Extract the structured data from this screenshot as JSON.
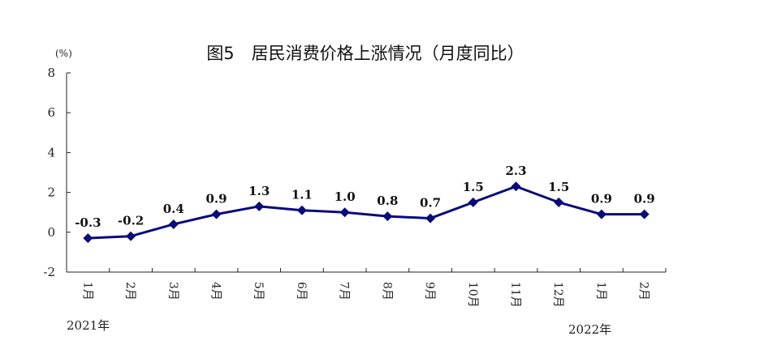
{
  "chart_data": {
    "type": "line",
    "title": "图5　居民消费价格上涨情况（月度同比）",
    "y_unit": "(%)",
    "categories": [
      "1月",
      "2月",
      "3月",
      "4月",
      "5月",
      "6月",
      "7月",
      "8月",
      "9月",
      "10月",
      "11月",
      "12月",
      "1月",
      "2月"
    ],
    "series": [
      {
        "values": [
          -0.3,
          -0.2,
          0.4,
          0.9,
          1.3,
          1.1,
          1.0,
          0.8,
          0.7,
          1.5,
          2.3,
          1.5,
          0.9,
          0.9
        ]
      }
    ],
    "data_labels": [
      "-0.3",
      "-0.2",
      "0.4",
      "0.9",
      "1.3",
      "1.1",
      "1.0",
      "0.8",
      "0.7",
      "1.5",
      "2.3",
      "1.5",
      "0.9",
      "0.9"
    ],
    "ylim": [
      -2,
      8
    ],
    "yticks": [
      "8",
      "6",
      "4",
      "2",
      "0",
      "-2"
    ],
    "year_labels": [
      "2021年",
      "2022年"
    ],
    "grid": false,
    "line_color": "#0a0a7a"
  }
}
